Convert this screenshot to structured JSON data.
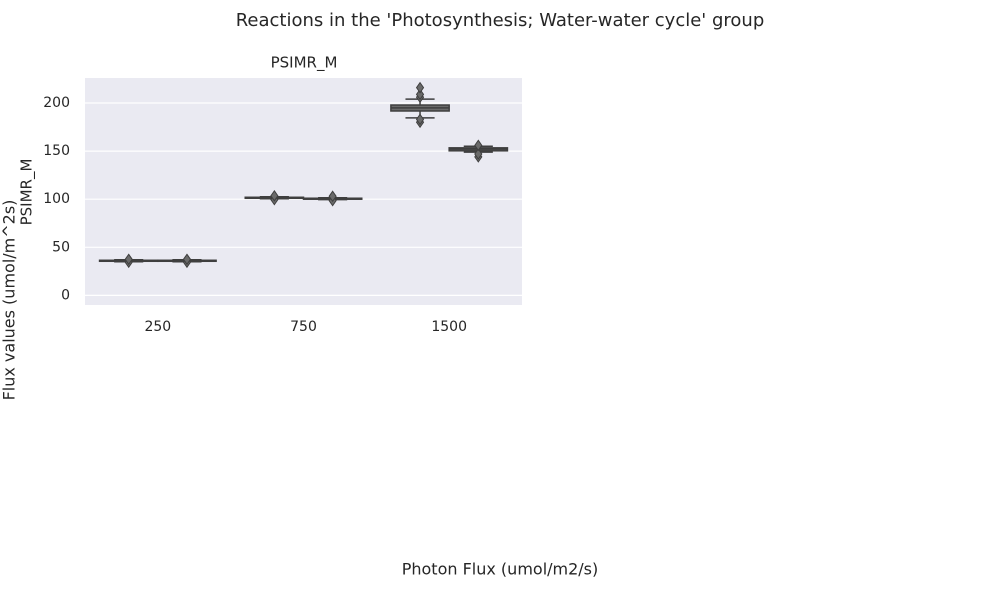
{
  "chart_data": {
    "type": "box",
    "title": "Reactions in the 'Photosynthesis; Water-water cycle' group",
    "subplot_title": "PSIMR_M",
    "y_label": "PSIMR_M",
    "outer_y_label": "Flux values (umol/m^2s)",
    "x_label": "Photon Flux (umol/m2/s)",
    "categories": [
      "250",
      "750",
      "1500"
    ],
    "ylim": [
      -10,
      226
    ],
    "yticks": [
      0,
      50,
      100,
      150,
      200
    ],
    "grid": true,
    "series": [
      {
        "color": "#6a6a6a",
        "stats": [
          {
            "min": 35,
            "q1": 35.5,
            "median": 36,
            "q3": 36.5,
            "max": 37,
            "outliers": [
              34.5,
              37.5
            ]
          },
          {
            "min": 100.5,
            "q1": 101,
            "median": 101.5,
            "q3": 102,
            "max": 102.5,
            "outliers": [
              99.5,
              103.5
            ]
          },
          {
            "min": 184.5,
            "q1": 191.7,
            "median": 195,
            "q3": 197.9,
            "max": 204,
            "outliers": [
              180,
              183,
              206,
              209,
              216
            ]
          }
        ]
      },
      {
        "color": "#6a6a6a",
        "stats": [
          {
            "min": 35,
            "q1": 35.5,
            "median": 36,
            "q3": 36.5,
            "max": 37,
            "outliers": [
              34.5,
              37.5
            ]
          },
          {
            "min": 99.5,
            "q1": 100,
            "median": 100.5,
            "q3": 101,
            "max": 101.5,
            "outliers": [
              98.5,
              103
            ]
          },
          {
            "min": 149,
            "q1": 150.3,
            "median": 152,
            "q3": 153.4,
            "max": 155,
            "outliers": [
              144,
              147,
              156
            ]
          }
        ]
      }
    ]
  }
}
